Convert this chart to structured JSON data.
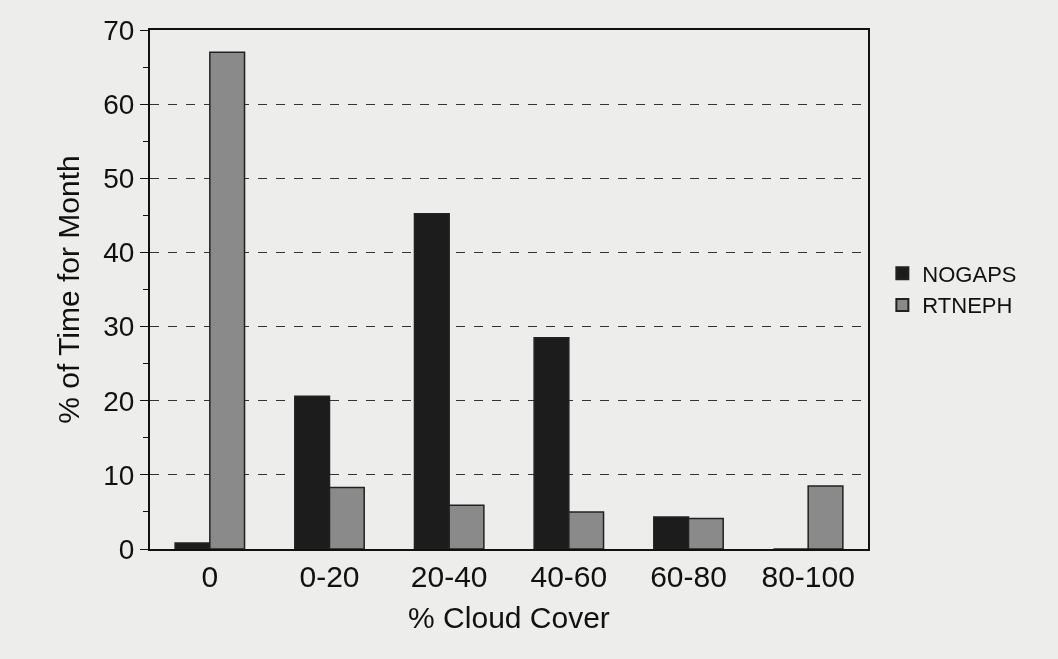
{
  "chart_data": {
    "type": "bar",
    "xlabel": "% Cloud Cover",
    "ylabel": "% of Time for Month",
    "categories": [
      "0",
      "0-20",
      "20-40",
      "40-60",
      "60-80",
      "80-100"
    ],
    "series": [
      {
        "name": "NOGAPS",
        "color": "#1c1c1c",
        "values": [
          0.8,
          20.6,
          45.2,
          28.5,
          4.3,
          0
        ]
      },
      {
        "name": "RTNEPH",
        "color": "#8a8a8a",
        "values": [
          67,
          8.3,
          5.9,
          5.0,
          4.1,
          8.5
        ]
      }
    ],
    "ylim": [
      0,
      70
    ],
    "yticks": [
      0,
      10,
      20,
      30,
      40,
      50,
      60,
      70
    ],
    "grid": "y",
    "legend": "right"
  }
}
